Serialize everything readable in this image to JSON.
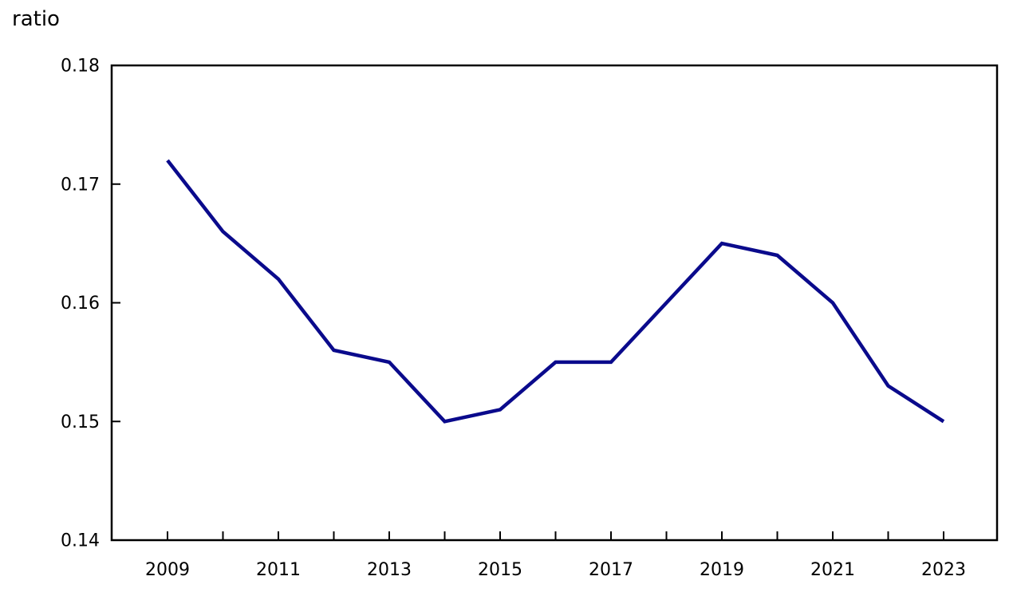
{
  "chart": {
    "axis_title_label": "ratio"
  },
  "colors": {
    "line": "#0A0A8C",
    "axis": "#000000",
    "text": "#000000",
    "background": "#FFFFFF"
  },
  "chart_data": {
    "type": "line",
    "title": "",
    "ylabel": "ratio",
    "xlabel": "",
    "x": [
      2009,
      2010,
      2011,
      2012,
      2013,
      2014,
      2015,
      2016,
      2017,
      2018,
      2019,
      2020,
      2021,
      2022,
      2023
    ],
    "values": [
      0.172,
      0.166,
      0.162,
      0.156,
      0.155,
      0.15,
      0.151,
      0.155,
      0.155,
      0.16,
      0.165,
      0.164,
      0.16,
      0.153,
      0.15
    ],
    "ylim": [
      0.14,
      0.18
    ],
    "yticks": [
      0.18,
      0.17,
      0.16,
      0.15,
      0.14
    ],
    "ytick_labels": [
      "0.18",
      "0.17",
      "0.16",
      "0.15",
      "0.14"
    ],
    "xticks": [
      2009,
      2010,
      2011,
      2012,
      2013,
      2014,
      2015,
      2016,
      2017,
      2018,
      2019,
      2020,
      2021,
      2022,
      2023
    ],
    "xtick_labels": [
      "2009",
      "2011",
      "2013",
      "2015",
      "2017",
      "2019",
      "2021",
      "2023"
    ],
    "labeled_x_years": [
      2009,
      2011,
      2013,
      2015,
      2017,
      2019,
      2021,
      2023
    ],
    "grid": false,
    "legend": "none"
  }
}
